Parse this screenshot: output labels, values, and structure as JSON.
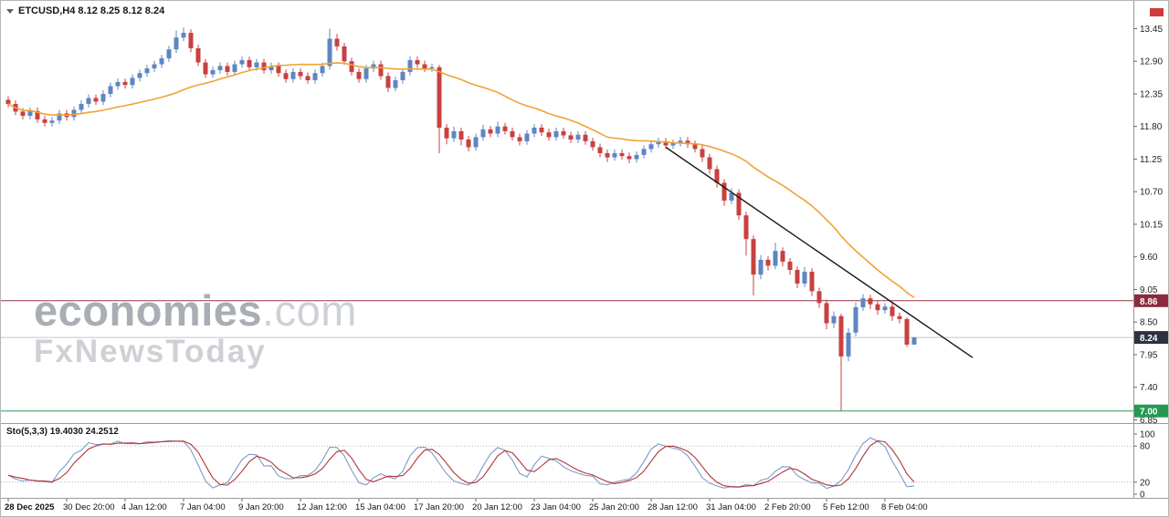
{
  "header": {
    "symbol_info": "ETCUSD,H4 8.12 8.25 8.12 8.24"
  },
  "watermark": {
    "brand": "economies",
    "suffix": ".com",
    "tagline": "FxNewsToday"
  },
  "indicator": {
    "label": "Sto(5,3,3) 19.4030 24.2512"
  },
  "colors": {
    "up_candle": "#5E86C1",
    "down_candle": "#C94040",
    "ma": "#F0A238",
    "trendline": "#1a1a1a",
    "sto_main": "#7A9CC6",
    "sto_signal": "#B23434",
    "axis_text": "#1f1f1f",
    "separator": "#9a9a9a",
    "level_dotted": "#b5b5b5",
    "shift_marker": "#cf3b3b"
  },
  "chart_data": {
    "type": "candlestick",
    "symbol": "ETCUSD",
    "timeframe": "H4",
    "last_ohlc": {
      "open": 8.12,
      "high": 8.25,
      "low": 8.12,
      "close": 8.24
    },
    "price_axis": {
      "labels": [
        13.45,
        12.9,
        12.35,
        11.8,
        11.25,
        10.7,
        10.15,
        9.6,
        9.05,
        8.5,
        7.95,
        7.4,
        6.85
      ]
    },
    "time_axis": [
      "28 Dec 2025",
      "30 Dec 20:00",
      "4 Jan 12:00",
      "7 Jan 04:00",
      "9 Jan 20:00",
      "12 Jan 12:00",
      "15 Jan 04:00",
      "17 Jan 20:00",
      "20 Jan 12:00",
      "23 Jan 04:00",
      "25 Jan 20:00",
      "28 Jan 12:00",
      "31 Jan 04:00",
      "2 Feb 20:00",
      "5 Feb 12:00",
      "8 Feb 04:00"
    ],
    "candles": [
      [
        12.25,
        12.31,
        12.12,
        12.18
      ],
      [
        12.18,
        12.24,
        11.99,
        12.05
      ],
      [
        12.05,
        12.11,
        11.92,
        11.98
      ],
      [
        11.98,
        12.12,
        11.92,
        12.06
      ],
      [
        12.06,
        12.12,
        11.86,
        11.92
      ],
      [
        11.92,
        11.98,
        11.8,
        11.86
      ],
      [
        11.86,
        11.96,
        11.8,
        11.9
      ],
      [
        11.9,
        12.08,
        11.84,
        12.02
      ],
      [
        12.02,
        12.08,
        11.9,
        11.96
      ],
      [
        11.96,
        12.14,
        11.9,
        12.08
      ],
      [
        12.08,
        12.24,
        12.02,
        12.18
      ],
      [
        12.18,
        12.34,
        12.12,
        12.28
      ],
      [
        12.28,
        12.34,
        12.16,
        12.22
      ],
      [
        12.22,
        12.41,
        12.16,
        12.35
      ],
      [
        12.35,
        12.54,
        12.29,
        12.48
      ],
      [
        12.48,
        12.61,
        12.42,
        12.55
      ],
      [
        12.55,
        12.61,
        12.44,
        12.5
      ],
      [
        12.5,
        12.68,
        12.44,
        12.62
      ],
      [
        12.62,
        12.76,
        12.56,
        12.7
      ],
      [
        12.7,
        12.84,
        12.64,
        12.78
      ],
      [
        12.78,
        12.91,
        12.72,
        12.85
      ],
      [
        12.85,
        13.01,
        12.79,
        12.95
      ],
      [
        12.95,
        13.16,
        12.89,
        13.1
      ],
      [
        13.1,
        13.42,
        13.04,
        13.3
      ],
      [
        13.3,
        13.47,
        13.24,
        13.38
      ],
      [
        13.38,
        13.44,
        13.05,
        13.12
      ],
      [
        13.12,
        13.18,
        12.82,
        12.88
      ],
      [
        12.88,
        12.94,
        12.62,
        12.68
      ],
      [
        12.68,
        12.81,
        12.62,
        12.75
      ],
      [
        12.75,
        12.88,
        12.69,
        12.82
      ],
      [
        12.82,
        12.88,
        12.66,
        12.72
      ],
      [
        12.72,
        12.91,
        12.66,
        12.85
      ],
      [
        12.85,
        12.98,
        12.79,
        12.92
      ],
      [
        12.92,
        12.98,
        12.74,
        12.8
      ],
      [
        12.8,
        12.94,
        12.74,
        12.88
      ],
      [
        12.88,
        12.94,
        12.69,
        12.75
      ],
      [
        12.75,
        12.88,
        12.69,
        12.82
      ],
      [
        12.82,
        12.88,
        12.64,
        12.7
      ],
      [
        12.7,
        12.76,
        12.54,
        12.6
      ],
      [
        12.6,
        12.78,
        12.54,
        12.72
      ],
      [
        12.72,
        12.78,
        12.59,
        12.65
      ],
      [
        12.65,
        12.71,
        12.52,
        12.58
      ],
      [
        12.58,
        12.76,
        12.52,
        12.7
      ],
      [
        12.7,
        12.88,
        12.64,
        12.82
      ],
      [
        12.82,
        13.45,
        12.76,
        13.28
      ],
      [
        13.28,
        13.36,
        13.08,
        13.15
      ],
      [
        13.15,
        13.21,
        12.84,
        12.9
      ],
      [
        12.9,
        12.96,
        12.66,
        12.72
      ],
      [
        12.72,
        12.78,
        12.54,
        12.6
      ],
      [
        12.6,
        12.84,
        12.54,
        12.78
      ],
      [
        12.78,
        12.91,
        12.72,
        12.85
      ],
      [
        12.85,
        12.91,
        12.59,
        12.65
      ],
      [
        12.65,
        12.71,
        12.38,
        12.45
      ],
      [
        12.45,
        12.64,
        12.39,
        12.58
      ],
      [
        12.58,
        12.78,
        12.52,
        12.72
      ],
      [
        12.72,
        12.98,
        12.66,
        12.92
      ],
      [
        12.92,
        12.98,
        12.79,
        12.85
      ],
      [
        12.85,
        12.91,
        12.72,
        12.78
      ],
      [
        12.78,
        12.86,
        12.72,
        12.8
      ],
      [
        12.8,
        12.84,
        11.35,
        11.78
      ],
      [
        11.78,
        11.84,
        11.5,
        11.6
      ],
      [
        11.6,
        11.8,
        11.54,
        11.72
      ],
      [
        11.72,
        11.78,
        11.48,
        11.58
      ],
      [
        11.58,
        11.64,
        11.38,
        11.45
      ],
      [
        11.45,
        11.68,
        11.39,
        11.62
      ],
      [
        11.62,
        11.83,
        11.56,
        11.75
      ],
      [
        11.75,
        11.81,
        11.62,
        11.68
      ],
      [
        11.68,
        11.88,
        11.62,
        11.8
      ],
      [
        11.8,
        11.86,
        11.66,
        11.72
      ],
      [
        11.72,
        11.78,
        11.56,
        11.62
      ],
      [
        11.62,
        11.68,
        11.48,
        11.55
      ],
      [
        11.55,
        11.74,
        11.49,
        11.68
      ],
      [
        11.68,
        11.84,
        11.62,
        11.78
      ],
      [
        11.78,
        11.84,
        11.64,
        11.7
      ],
      [
        11.7,
        11.76,
        11.56,
        11.62
      ],
      [
        11.62,
        11.78,
        11.56,
        11.72
      ],
      [
        11.72,
        11.78,
        11.59,
        11.65
      ],
      [
        11.65,
        11.71,
        11.52,
        11.58
      ],
      [
        11.58,
        11.72,
        11.52,
        11.66
      ],
      [
        11.66,
        11.72,
        11.49,
        11.55
      ],
      [
        11.55,
        11.61,
        11.39,
        11.45
      ],
      [
        11.45,
        11.51,
        11.28,
        11.35
      ],
      [
        11.35,
        11.41,
        11.2,
        11.28
      ],
      [
        11.28,
        11.41,
        11.22,
        11.35
      ],
      [
        11.35,
        11.41,
        11.24,
        11.3
      ],
      [
        11.3,
        11.36,
        11.18,
        11.25
      ],
      [
        11.25,
        11.38,
        11.19,
        11.32
      ],
      [
        11.32,
        11.48,
        11.26,
        11.42
      ],
      [
        11.42,
        11.56,
        11.36,
        11.5
      ],
      [
        11.5,
        11.61,
        11.44,
        11.55
      ],
      [
        11.55,
        11.61,
        11.42,
        11.48
      ],
      [
        11.48,
        11.58,
        11.42,
        11.52
      ],
      [
        11.52,
        11.62,
        11.46,
        11.56
      ],
      [
        11.56,
        11.62,
        11.44,
        11.5
      ],
      [
        11.5,
        11.56,
        11.36,
        11.42
      ],
      [
        11.42,
        11.48,
        11.2,
        11.28
      ],
      [
        11.28,
        11.34,
        11.0,
        11.08
      ],
      [
        11.08,
        11.14,
        10.77,
        10.85
      ],
      [
        10.85,
        10.91,
        10.46,
        10.55
      ],
      [
        10.55,
        10.76,
        10.49,
        10.68
      ],
      [
        10.68,
        10.74,
        10.22,
        10.3
      ],
      [
        10.3,
        10.36,
        9.62,
        9.9
      ],
      [
        9.9,
        9.96,
        8.95,
        9.3
      ],
      [
        9.3,
        9.63,
        9.22,
        9.55
      ],
      [
        9.55,
        9.61,
        9.37,
        9.45
      ],
      [
        9.45,
        9.84,
        9.39,
        9.7
      ],
      [
        9.7,
        9.76,
        9.44,
        9.52
      ],
      [
        9.52,
        9.58,
        9.3,
        9.38
      ],
      [
        9.38,
        9.44,
        9.07,
        9.15
      ],
      [
        9.15,
        9.43,
        9.09,
        9.35
      ],
      [
        9.35,
        9.41,
        8.94,
        9.02
      ],
      [
        9.02,
        9.08,
        8.74,
        8.82
      ],
      [
        8.82,
        8.88,
        8.38,
        8.48
      ],
      [
        8.48,
        8.68,
        8.4,
        8.6
      ],
      [
        8.6,
        8.64,
        7.0,
        7.92
      ],
      [
        7.92,
        8.4,
        7.84,
        8.32
      ],
      [
        8.32,
        8.83,
        8.26,
        8.75
      ],
      [
        8.75,
        8.97,
        8.69,
        8.9
      ],
      [
        8.9,
        8.96,
        8.72,
        8.8
      ],
      [
        8.8,
        8.86,
        8.62,
        8.7
      ],
      [
        8.7,
        8.82,
        8.64,
        8.76
      ],
      [
        8.76,
        8.82,
        8.52,
        8.6
      ],
      [
        8.6,
        8.66,
        8.48,
        8.55
      ],
      [
        8.55,
        8.58,
        8.08,
        8.12
      ],
      [
        8.12,
        8.25,
        8.12,
        8.24
      ]
    ],
    "ma": {
      "period": 24,
      "color": "#F0A238"
    },
    "trendline": {
      "from_index": 90,
      "from_price": 11.45,
      "to_index": 132,
      "to_price": 7.9
    },
    "hlines": [
      {
        "price": 8.86,
        "line_color": "#993347",
        "tag_bg": "#8C2B3F",
        "tag": "8.86"
      },
      {
        "price": 8.24,
        "line_color": "#c8c8c8",
        "tag_bg": "#2E3240",
        "tag": "8.24"
      },
      {
        "price": 7.0,
        "line_color": "#2E9C5C",
        "tag_bg": "#229A52",
        "tag": "7.00"
      }
    ],
    "stochastic": {
      "k_period": 5,
      "slowing": 3,
      "d_period": 3,
      "current_k": 19.403,
      "current_d": 24.2512,
      "levels": [
        100,
        80,
        20,
        0
      ],
      "dotted_levels": [
        80,
        20
      ]
    }
  }
}
